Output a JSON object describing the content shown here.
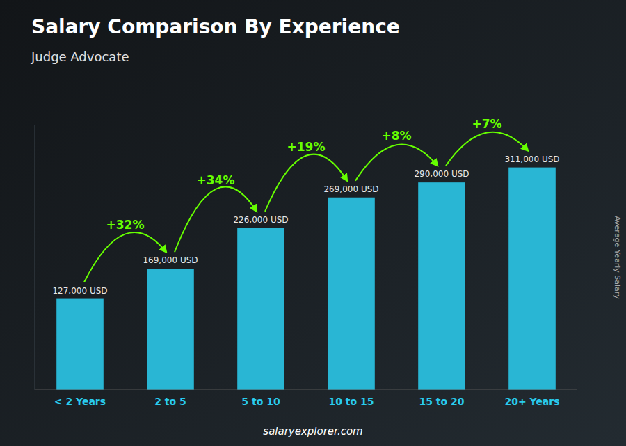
{
  "chart_data": {
    "type": "bar",
    "title": "Salary Comparison By Experience",
    "subtitle": "Judge Advocate",
    "y_label": "Average Yearly Salary",
    "categories": [
      "< 2 Years",
      "2 to 5",
      "5 to 10",
      "10 to 15",
      "15 to 20",
      "20+ Years"
    ],
    "values": [
      127000,
      169000,
      226000,
      269000,
      290000,
      311000
    ],
    "value_labels": [
      "127,000 USD",
      "169,000 USD",
      "226,000 USD",
      "269,000 USD",
      "290,000 USD",
      "311,000 USD"
    ],
    "data_labels": true,
    "annotations": [
      "+32%",
      "+34%",
      "+19%",
      "+8%",
      "+7%"
    ],
    "source": "salaryexplorer.com",
    "color": "#29b6d4",
    "ylim": [
      0,
      370000
    ],
    "tick_labels": "x",
    "grid": false
  }
}
